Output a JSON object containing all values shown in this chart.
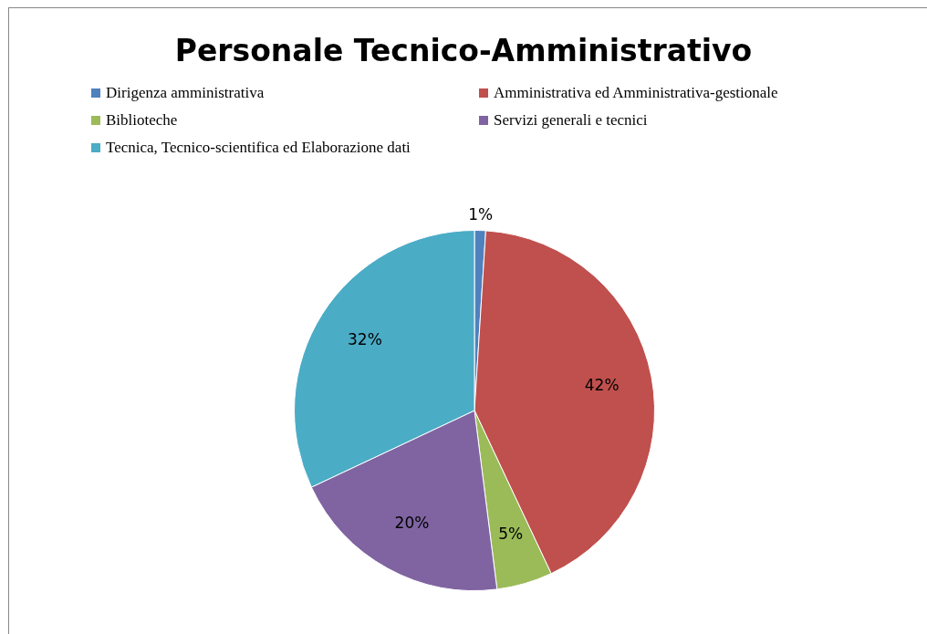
{
  "chart_data": {
    "type": "pie",
    "title": "Personale Tecnico-Amministrativo",
    "categories": [
      "Dirigenza amministrativa",
      "Amministrativa ed Amministrativa-gestionale",
      "Biblioteche",
      "Servizi generali e tecnici",
      "Tecnica, Tecnico-scientifica ed Elaborazione dati"
    ],
    "values": [
      1,
      42,
      5,
      20,
      32
    ],
    "value_labels": [
      "1%",
      "42%",
      "5%",
      "20%",
      "32%"
    ],
    "colors": [
      "#4f81bd",
      "#c0504d",
      "#9bbb59",
      "#8064a2",
      "#4bacc6"
    ],
    "legend": "top"
  }
}
